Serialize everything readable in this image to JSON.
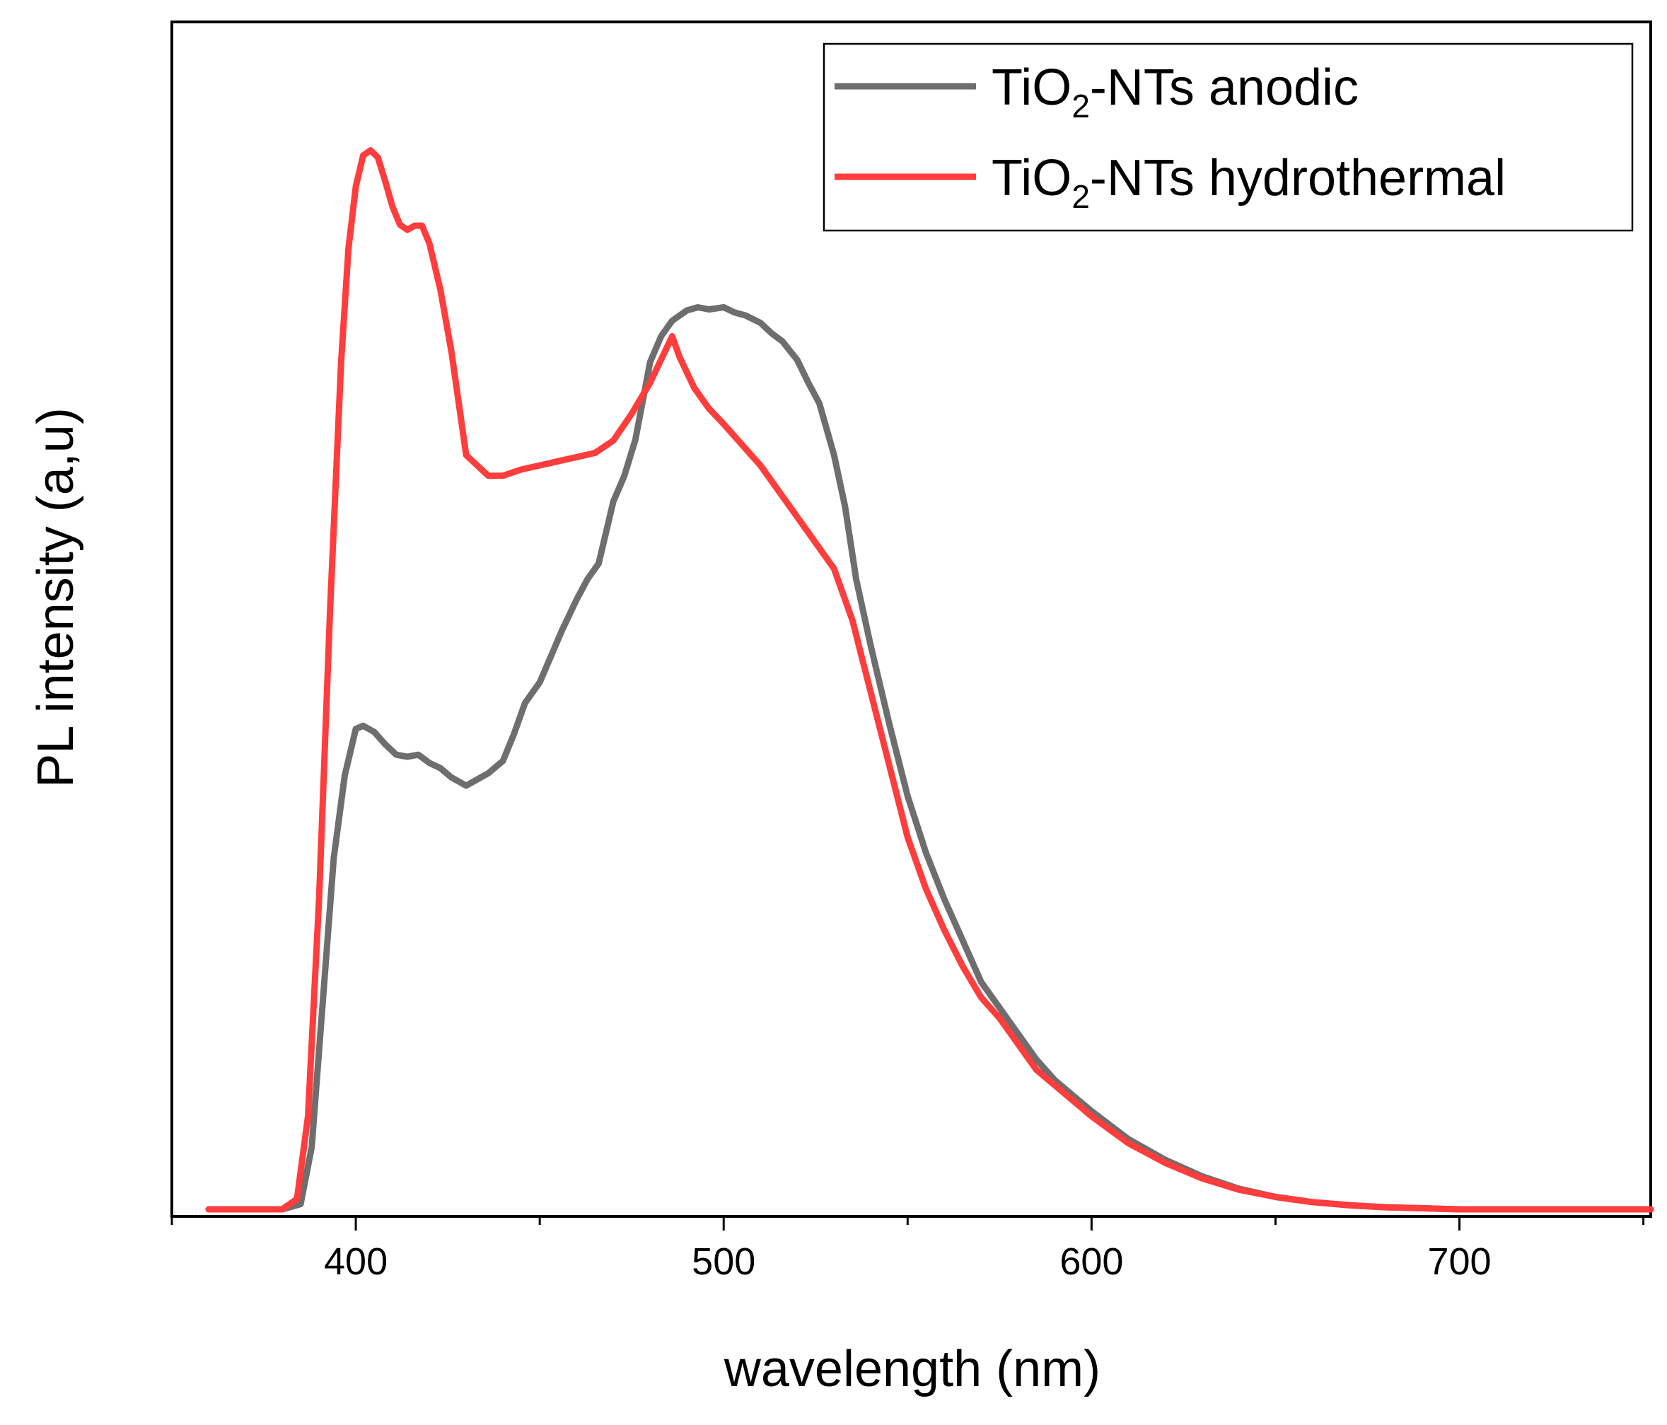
{
  "chart_data": {
    "type": "line",
    "title": "",
    "xlabel": "wavelength (nm)",
    "ylabel": "PL intensity (a,u)",
    "xlim": [
      350,
      752
    ],
    "ylim": [
      0,
      1.0
    ],
    "x_ticks": [
      400,
      500,
      600,
      700
    ],
    "x_minor_ticks": [
      350,
      450,
      550,
      650,
      750
    ],
    "y_ticks_shown": false,
    "grid": false,
    "legend": {
      "position": "top-right"
    },
    "series": [
      {
        "name": "TiO2-NTs anodic",
        "name_parts": [
          "TiO",
          "2",
          "-NTs anodic"
        ],
        "color": "#6e6e6e",
        "x": [
          360,
          370,
          380,
          385,
          388,
          391,
          394,
          397,
          400,
          402,
          405,
          408,
          411,
          414,
          417,
          420,
          423,
          426,
          430,
          433,
          436,
          440,
          443,
          446,
          450,
          453,
          456,
          460,
          463,
          466,
          470,
          473,
          476,
          480,
          483,
          486,
          490,
          493,
          496,
          500,
          503,
          506,
          510,
          513,
          516,
          520,
          523,
          526,
          530,
          533,
          536,
          540,
          545,
          550,
          555,
          560,
          565,
          570,
          575,
          580,
          585,
          590,
          600,
          610,
          620,
          630,
          640,
          650,
          660,
          670,
          680,
          690,
          700,
          720,
          752
        ],
        "y": [
          0.0,
          0.0,
          0.0,
          0.005,
          0.06,
          0.2,
          0.34,
          0.42,
          0.465,
          0.468,
          0.462,
          0.45,
          0.44,
          0.438,
          0.44,
          0.432,
          0.427,
          0.418,
          0.41,
          0.416,
          0.422,
          0.434,
          0.46,
          0.49,
          0.51,
          0.535,
          0.56,
          0.59,
          0.61,
          0.625,
          0.685,
          0.71,
          0.745,
          0.82,
          0.845,
          0.86,
          0.87,
          0.873,
          0.871,
          0.873,
          0.868,
          0.865,
          0.858,
          0.848,
          0.84,
          0.822,
          0.8,
          0.78,
          0.73,
          0.68,
          0.61,
          0.545,
          0.47,
          0.4,
          0.345,
          0.3,
          0.26,
          0.22,
          0.195,
          0.17,
          0.145,
          0.125,
          0.095,
          0.068,
          0.048,
          0.032,
          0.02,
          0.012,
          0.007,
          0.004,
          0.002,
          0.001,
          0.0,
          0.0,
          0.0
        ]
      },
      {
        "name": "TiO2-NTs hydrothermal",
        "name_parts": [
          "TiO",
          "2",
          "-NTs hydrothermal"
        ],
        "color": "#ff3d3d",
        "x": [
          360,
          370,
          380,
          384,
          387,
          390,
          393,
          396,
          398,
          400,
          402,
          404,
          406,
          408,
          410,
          412,
          414,
          416,
          418,
          420,
          423,
          426,
          430,
          433,
          436,
          440,
          445,
          450,
          455,
          460,
          465,
          470,
          475,
          480,
          484,
          486,
          488,
          492,
          496,
          500,
          505,
          510,
          515,
          520,
          525,
          530,
          535,
          540,
          545,
          550,
          555,
          560,
          565,
          570,
          575,
          580,
          585,
          590,
          600,
          610,
          620,
          630,
          640,
          650,
          660,
          670,
          680,
          690,
          700,
          720,
          752
        ],
        "y": [
          0.0,
          0.0,
          0.0,
          0.01,
          0.09,
          0.3,
          0.58,
          0.82,
          0.93,
          0.99,
          1.02,
          1.025,
          1.018,
          0.995,
          0.97,
          0.953,
          0.948,
          0.952,
          0.952,
          0.935,
          0.89,
          0.83,
          0.73,
          0.72,
          0.71,
          0.71,
          0.716,
          0.72,
          0.724,
          0.728,
          0.732,
          0.744,
          0.77,
          0.8,
          0.83,
          0.845,
          0.825,
          0.795,
          0.775,
          0.76,
          0.74,
          0.72,
          0.695,
          0.67,
          0.645,
          0.62,
          0.57,
          0.5,
          0.43,
          0.36,
          0.31,
          0.27,
          0.235,
          0.205,
          0.185,
          0.16,
          0.135,
          0.12,
          0.09,
          0.064,
          0.045,
          0.03,
          0.019,
          0.012,
          0.007,
          0.004,
          0.002,
          0.001,
          0.0,
          0.0,
          0.0
        ]
      }
    ]
  }
}
